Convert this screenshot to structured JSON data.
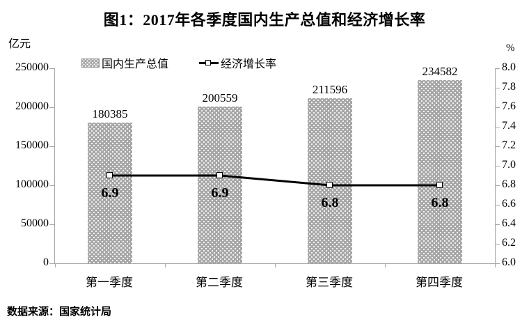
{
  "title": "图1：2017年各季度国内生产总值和经济增长率",
  "source_note": "数据来源：国家统计局",
  "legend": [
    {
      "label": "国内生产总值",
      "type": "bar"
    },
    {
      "label": "经济增长率",
      "type": "line"
    }
  ],
  "colors": {
    "bar_fill": "#a7a7a7",
    "bar_dots": "#ffffff",
    "line": "#000000",
    "marker_fill": "#ffffff",
    "marker_border": "#000000",
    "axis": "#a6a6a6",
    "text": "#000000"
  },
  "chart_data": {
    "type": "bar",
    "subtype": "bar-line-combo",
    "title": "图1：2017年各季度国内生产总值和经济增长率",
    "categories": [
      "第一季度",
      "第二季度",
      "第三季度",
      "第四季度"
    ],
    "series": [
      {
        "name": "国内生产总值",
        "type": "bar",
        "axis": "left",
        "values": [
          180385,
          200559,
          211596,
          234582
        ],
        "value_labels": [
          "180385",
          "200559",
          "211596",
          "234582"
        ]
      },
      {
        "name": "经济增长率",
        "type": "line",
        "axis": "right",
        "values": [
          6.9,
          6.9,
          6.8,
          6.8
        ],
        "value_labels": [
          "6.9",
          "6.9",
          "6.8",
          "6.8"
        ]
      }
    ],
    "left_axis": {
      "label": "亿元",
      "min": 0,
      "max": 250000,
      "step": 50000,
      "tick_labels_top_to_bottom": [
        "250000",
        "200000",
        "150000",
        "100000",
        "50000",
        "0"
      ]
    },
    "right_axis": {
      "label": "%",
      "min": 6.0,
      "max": 8.0,
      "step": 0.2,
      "tick_labels_top_to_bottom": [
        "8.0",
        "7.8",
        "7.6",
        "7.4",
        "7.2",
        "7.0",
        "6.8",
        "6.6",
        "6.4",
        "6.2",
        "6.0"
      ]
    },
    "grid": false,
    "legend_position": "top-left"
  }
}
